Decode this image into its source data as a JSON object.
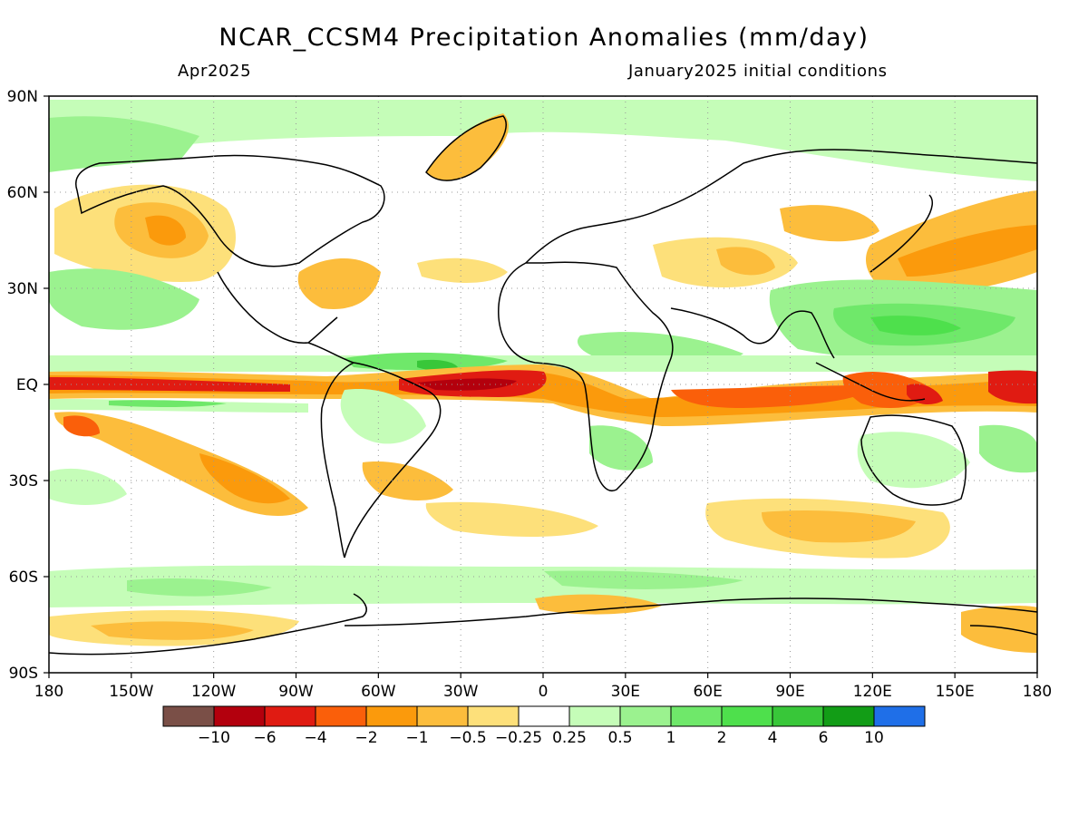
{
  "header": {
    "title": "NCAR_CCSM4 Precipitation Anomalies (mm/day)",
    "left_subtitle": "Apr2025",
    "right_subtitle": "January2025 initial conditions"
  },
  "map": {
    "projection": "equirectangular",
    "lon_range": [
      -180,
      180
    ],
    "lat_range": [
      -90,
      90
    ],
    "grid": "dotted",
    "lat_labels": [
      "90N",
      "60N",
      "30N",
      "EQ",
      "30S",
      "60S",
      "90S"
    ],
    "lat_values": [
      90,
      60,
      30,
      0,
      -30,
      -60,
      -90
    ],
    "lon_labels": [
      "180",
      "150W",
      "120W",
      "90W",
      "60W",
      "30W",
      "0",
      "30E",
      "60E",
      "90E",
      "120E",
      "150E",
      "180"
    ],
    "lon_values": [
      -180,
      -150,
      -120,
      -90,
      -60,
      -30,
      0,
      30,
      60,
      90,
      120,
      150,
      180
    ]
  },
  "colorbar": {
    "labels": [
      "−10",
      "−6",
      "−4",
      "−2",
      "−1",
      "−0.5",
      "−0.25",
      "0.25",
      "0.5",
      "1",
      "2",
      "4",
      "6",
      "10"
    ],
    "colors": [
      "#7a4f47",
      "#b3000d",
      "#e01b12",
      "#fa5f0a",
      "#fb9a0c",
      "#fcbd3c",
      "#fde07a",
      "#ffffff",
      "#c5fdb8",
      "#9bf28f",
      "#6fe86a",
      "#4ee04c",
      "#38c739",
      "#129d16",
      "#1f6fe8"
    ]
  }
}
